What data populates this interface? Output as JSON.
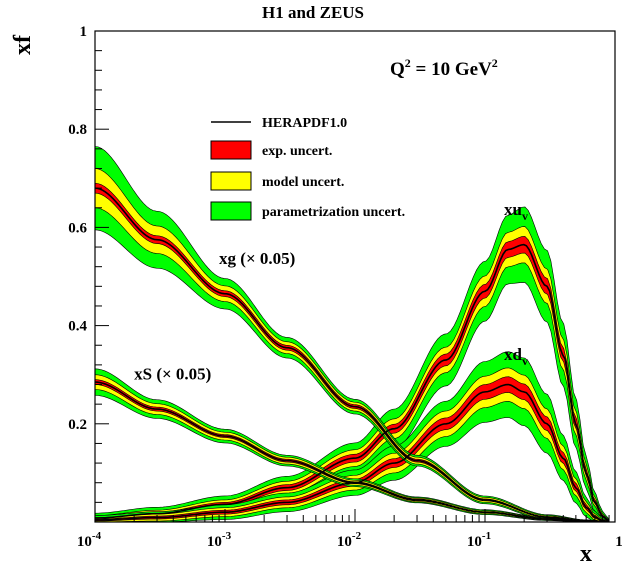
{
  "chart_data": {
    "type": "line",
    "title": "H1 and ZEUS",
    "ylabel": "xf",
    "xlabel": "x",
    "annotation": {
      "base": "Q",
      "sup": "2",
      "mid": " = 10 GeV",
      "sup2": "2"
    },
    "x_scale": "log",
    "xlim": [
      0.0001,
      1
    ],
    "ylim": [
      0,
      1
    ],
    "x_ticks": [
      {
        "value": 0.0001,
        "base": "10",
        "exp": "-4"
      },
      {
        "value": 0.001,
        "base": "10",
        "exp": "-3"
      },
      {
        "value": 0.01,
        "base": "10",
        "exp": "-2"
      },
      {
        "value": 0.1,
        "base": "10",
        "exp": "-1"
      },
      {
        "value": 1,
        "base": "1",
        "exp": ""
      }
    ],
    "y_ticks": [
      {
        "value": 0.2,
        "label": "0.2"
      },
      {
        "value": 0.4,
        "label": "0.4"
      },
      {
        "value": 0.6,
        "label": "0.6"
      },
      {
        "value": 0.8,
        "label": "0.8"
      },
      {
        "value": 1.0,
        "label": "1"
      }
    ],
    "legend": {
      "position": "top-center",
      "entries": [
        {
          "label": "HERAPDF1.0",
          "style": "line",
          "color": "#000000"
        },
        {
          "label": "exp. uncert.",
          "style": "box",
          "color": "#ff0000"
        },
        {
          "label": "model uncert.",
          "style": "box",
          "color": "#ffff00"
        },
        {
          "label": "parametrization uncert.",
          "style": "box",
          "color": "#00ff00"
        }
      ]
    },
    "colors": {
      "central": "#000000",
      "exp": "#ff0000",
      "model": "#ffff00",
      "param": "#00ff00"
    },
    "series": [
      {
        "label": {
          "base": "xu",
          "sub": "v",
          "suffix": ""
        },
        "label_anchor": {
          "x": 0.14,
          "y": 0.625
        },
        "x": [
          0.0001,
          0.0003,
          0.001,
          0.003,
          0.01,
          0.02,
          0.05,
          0.1,
          0.15,
          0.2,
          0.3,
          0.4,
          0.5,
          0.6,
          0.7,
          0.8,
          0.9
        ],
        "central": [
          0.008,
          0.017,
          0.036,
          0.07,
          0.13,
          0.19,
          0.33,
          0.47,
          0.555,
          0.565,
          0.48,
          0.34,
          0.2,
          0.1,
          0.04,
          0.012,
          0.002
        ],
        "exp": [
          0.002,
          0.003,
          0.004,
          0.006,
          0.008,
          0.009,
          0.012,
          0.014,
          0.016,
          0.017,
          0.016,
          0.014,
          0.011,
          0.007,
          0.004,
          0.002,
          0.001
        ],
        "model": [
          0.003,
          0.004,
          0.005,
          0.007,
          0.009,
          0.011,
          0.014,
          0.017,
          0.019,
          0.02,
          0.019,
          0.017,
          0.013,
          0.009,
          0.005,
          0.003,
          0.001
        ],
        "param": [
          0.005,
          0.006,
          0.008,
          0.01,
          0.014,
          0.02,
          0.027,
          0.03,
          0.035,
          0.04,
          0.038,
          0.033,
          0.026,
          0.017,
          0.01,
          0.005,
          0.002
        ]
      },
      {
        "label": {
          "base": "xd",
          "sub": "v",
          "suffix": ""
        },
        "label_anchor": {
          "x": 0.14,
          "y": 0.33
        },
        "x": [
          0.0001,
          0.0003,
          0.001,
          0.003,
          0.01,
          0.02,
          0.05,
          0.1,
          0.15,
          0.2,
          0.3,
          0.4,
          0.5,
          0.6,
          0.7,
          0.8,
          0.9
        ],
        "central": [
          0.004,
          0.009,
          0.02,
          0.04,
          0.08,
          0.12,
          0.2,
          0.265,
          0.28,
          0.265,
          0.2,
          0.13,
          0.07,
          0.03,
          0.01,
          0.003,
          0.001
        ],
        "exp": [
          0.002,
          0.003,
          0.004,
          0.005,
          0.007,
          0.009,
          0.012,
          0.015,
          0.016,
          0.016,
          0.014,
          0.011,
          0.008,
          0.005,
          0.003,
          0.001,
          0.0005
        ],
        "model": [
          0.003,
          0.004,
          0.005,
          0.006,
          0.008,
          0.011,
          0.014,
          0.017,
          0.018,
          0.018,
          0.016,
          0.013,
          0.009,
          0.006,
          0.003,
          0.002,
          0.001
        ],
        "param": [
          0.004,
          0.005,
          0.006,
          0.008,
          0.011,
          0.015,
          0.02,
          0.03,
          0.033,
          0.035,
          0.03,
          0.022,
          0.015,
          0.009,
          0.005,
          0.003,
          0.001
        ]
      },
      {
        "label": {
          "base": "xg (× 0.05)",
          "sub": "",
          "suffix": ""
        },
        "label_anchor": {
          "x": 0.0009,
          "y": 0.525
        },
        "x": [
          0.0001,
          0.0003,
          0.001,
          0.003,
          0.01,
          0.03,
          0.1,
          0.3,
          0.6,
          0.9
        ],
        "central": [
          0.68,
          0.575,
          0.465,
          0.355,
          0.235,
          0.125,
          0.045,
          0.01,
          0.002,
          0.0003
        ],
        "exp": [
          0.01,
          0.008,
          0.006,
          0.005,
          0.004,
          0.003,
          0.002,
          0.001,
          0.0005,
          0.0002
        ],
        "model": [
          0.03,
          0.02,
          0.01,
          0.007,
          0.005,
          0.004,
          0.003,
          0.002,
          0.001,
          0.0003
        ],
        "param": [
          0.045,
          0.03,
          0.015,
          0.009,
          0.006,
          0.004,
          0.003,
          0.002,
          0.001,
          0.0003
        ]
      },
      {
        "label": {
          "base": "xS (× 0.05)",
          "sub": "",
          "suffix": ""
        },
        "label_anchor": {
          "x": 0.0002,
          "y": 0.29
        },
        "x": [
          0.0001,
          0.0003,
          0.001,
          0.003,
          0.01,
          0.03,
          0.1,
          0.3,
          0.6,
          0.9
        ],
        "central": [
          0.285,
          0.23,
          0.175,
          0.125,
          0.08,
          0.045,
          0.02,
          0.006,
          0.001,
          0.0002
        ],
        "exp": [
          0.005,
          0.004,
          0.003,
          0.003,
          0.002,
          0.002,
          0.001,
          0.001,
          0.0004,
          0.0001
        ],
        "model": [
          0.01,
          0.007,
          0.005,
          0.004,
          0.003,
          0.002,
          0.002,
          0.001,
          0.0005,
          0.0001
        ],
        "param": [
          0.012,
          0.008,
          0.006,
          0.004,
          0.003,
          0.002,
          0.002,
          0.001,
          0.0005,
          0.0001
        ]
      }
    ]
  }
}
